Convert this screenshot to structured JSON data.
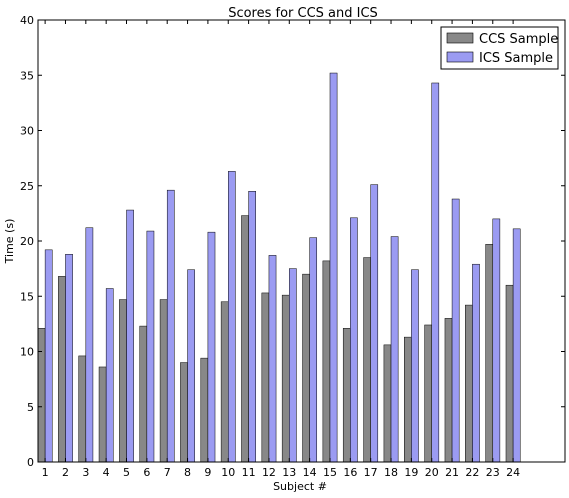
{
  "chart_data": {
    "type": "bar",
    "title": "Scores for CCS and ICS",
    "xlabel": "Subject #",
    "ylabel": "Time (s)",
    "categories": [
      "1",
      "2",
      "3",
      "4",
      "5",
      "6",
      "7",
      "8",
      "9",
      "10",
      "11",
      "12",
      "13",
      "14",
      "15",
      "16",
      "17",
      "18",
      "19",
      "20",
      "21",
      "22",
      "23",
      "24"
    ],
    "series": [
      {
        "name": "CCS Sample",
        "color": "#888888",
        "values": [
          12.1,
          16.8,
          9.6,
          8.6,
          14.7,
          12.3,
          14.7,
          9.0,
          9.4,
          14.5,
          22.3,
          15.3,
          15.1,
          17.0,
          18.2,
          12.1,
          18.5,
          10.6,
          11.3,
          12.4,
          13.0,
          14.2,
          19.7,
          16.0
        ]
      },
      {
        "name": "ICS Sample",
        "color": "#9b9bf2",
        "values": [
          19.2,
          18.8,
          21.2,
          15.7,
          22.8,
          20.9,
          24.6,
          17.4,
          20.8,
          26.3,
          24.5,
          18.7,
          17.5,
          20.3,
          35.2,
          22.1,
          25.1,
          20.4,
          17.4,
          34.3,
          23.8,
          17.9,
          22.0,
          21.1
        ]
      }
    ],
    "ylim": [
      0,
      40
    ],
    "yticks": [
      "0",
      "5",
      "10",
      "15",
      "20",
      "25",
      "30",
      "35",
      "40"
    ],
    "legend_position": "top-right",
    "grid": false
  }
}
